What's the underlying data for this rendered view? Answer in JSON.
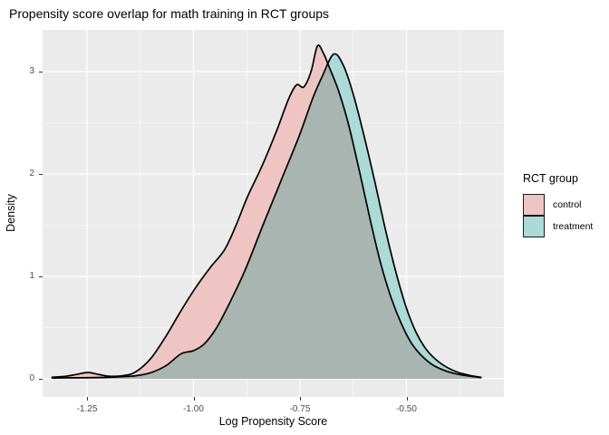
{
  "title": "Propensity score overlap for math training in RCT groups",
  "axis": {
    "tick_color": "#333333",
    "tick_label_color": "#4D4D4D"
  },
  "chart_data": {
    "type": "area",
    "subtype": "overlaid-density-curves",
    "title": "Propensity score overlap for math training in RCT groups",
    "xlabel": "Log Propensity Score",
    "ylabel": "Density",
    "xlim": [
      -1.354,
      -0.272
    ],
    "ylim": [
      0,
      3.41
    ],
    "x_tick_values": [
      -1.25,
      -1.0,
      -0.75,
      -0.5
    ],
    "x_tick_labels": [
      "-1.25",
      "-1.00",
      "-0.75",
      "-0.50"
    ],
    "x_minor_values": [
      -1.125,
      -0.875,
      -0.625,
      -0.375
    ],
    "y_tick_values": [
      0,
      1,
      2,
      3
    ],
    "y_tick_labels": [
      "0",
      "1",
      "2",
      "3"
    ],
    "y_minor_values": [
      0.5,
      1.5,
      2.5
    ],
    "grid": "white major+minor gridlines on gray panel",
    "panel_bg": "#EBEBEB",
    "grid_color": "#FFFFFF",
    "outline_color": "#000000",
    "overlap_fill": "#A8B5B0",
    "legend": {
      "title": "RCT group",
      "position": "right",
      "entries": [
        {
          "label": "control",
          "fill": "#EFC5C4"
        },
        {
          "label": "treatment",
          "fill": "#ABDAD7"
        }
      ]
    },
    "series": [
      {
        "name": "control",
        "fill": "#EFC5C4",
        "points": [
          [
            -1.332,
            0.015
          ],
          [
            -1.3,
            0.025
          ],
          [
            -1.272,
            0.045
          ],
          [
            -1.247,
            0.062
          ],
          [
            -1.222,
            0.042
          ],
          [
            -1.196,
            0.025
          ],
          [
            -1.163,
            0.032
          ],
          [
            -1.135,
            0.07
          ],
          [
            -1.1,
            0.2
          ],
          [
            -1.064,
            0.42
          ],
          [
            -1.03,
            0.66
          ],
          [
            -0.995,
            0.89
          ],
          [
            -0.96,
            1.09
          ],
          [
            -0.927,
            1.26
          ],
          [
            -0.9,
            1.5
          ],
          [
            -0.873,
            1.78
          ],
          [
            -0.84,
            2.07
          ],
          [
            -0.805,
            2.42
          ],
          [
            -0.777,
            2.73
          ],
          [
            -0.758,
            2.87
          ],
          [
            -0.741,
            2.85
          ],
          [
            -0.724,
            3.0
          ],
          [
            -0.709,
            3.25
          ],
          [
            -0.695,
            3.18
          ],
          [
            -0.682,
            3.05
          ],
          [
            -0.66,
            2.82
          ],
          [
            -0.637,
            2.5
          ],
          [
            -0.61,
            2.02
          ],
          [
            -0.585,
            1.55
          ],
          [
            -0.56,
            1.12
          ],
          [
            -0.535,
            0.78
          ],
          [
            -0.51,
            0.52
          ],
          [
            -0.487,
            0.34
          ],
          [
            -0.463,
            0.22
          ],
          [
            -0.438,
            0.135
          ],
          [
            -0.41,
            0.08
          ],
          [
            -0.383,
            0.048
          ],
          [
            -0.355,
            0.028
          ],
          [
            -0.325,
            0.012
          ]
        ]
      },
      {
        "name": "treatment",
        "fill": "#ABDAD7",
        "points": [
          [
            -1.332,
            0.008
          ],
          [
            -1.28,
            0.01
          ],
          [
            -1.23,
            0.012
          ],
          [
            -1.18,
            0.018
          ],
          [
            -1.135,
            0.03
          ],
          [
            -1.1,
            0.06
          ],
          [
            -1.064,
            0.13
          ],
          [
            -1.029,
            0.245
          ],
          [
            -1.0,
            0.275
          ],
          [
            -0.975,
            0.34
          ],
          [
            -0.947,
            0.49
          ],
          [
            -0.92,
            0.7
          ],
          [
            -0.88,
            1.05
          ],
          [
            -0.837,
            1.5
          ],
          [
            -0.794,
            1.94
          ],
          [
            -0.752,
            2.37
          ],
          [
            -0.72,
            2.74
          ],
          [
            -0.698,
            2.95
          ],
          [
            -0.671,
            3.17
          ],
          [
            -0.648,
            3.06
          ],
          [
            -0.625,
            2.78
          ],
          [
            -0.6,
            2.38
          ],
          [
            -0.574,
            1.92
          ],
          [
            -0.549,
            1.45
          ],
          [
            -0.524,
            1.03
          ],
          [
            -0.5,
            0.69
          ],
          [
            -0.477,
            0.45
          ],
          [
            -0.454,
            0.29
          ],
          [
            -0.43,
            0.185
          ],
          [
            -0.404,
            0.11
          ],
          [
            -0.378,
            0.062
          ],
          [
            -0.352,
            0.034
          ],
          [
            -0.325,
            0.015
          ]
        ]
      }
    ]
  }
}
